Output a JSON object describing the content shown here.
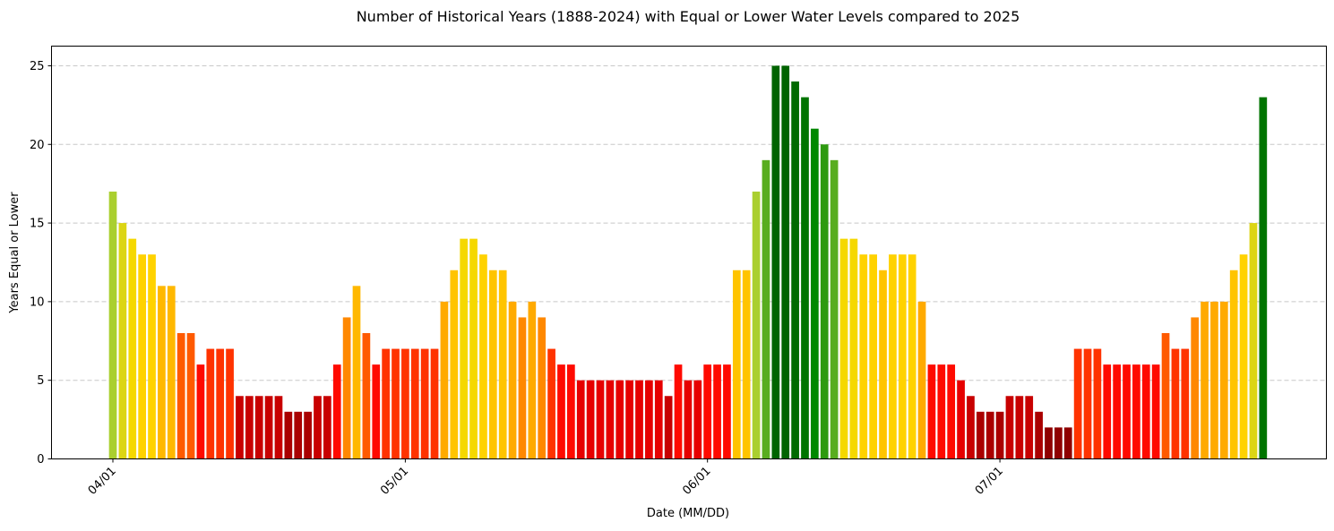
{
  "chart_data": {
    "type": "bar",
    "title": "Number of Historical Years (1888-2024) with Equal or Lower Water Levels compared to 2025",
    "xlabel": "Date (MM/DD)",
    "ylabel": "Years Equal or Lower",
    "start_date": "04/01",
    "x_tick_labels": [
      "04/01",
      "05/01",
      "06/01",
      "07/01"
    ],
    "y_ticks": [
      0,
      5,
      10,
      15,
      20,
      25
    ],
    "ylim": [
      0,
      26.25
    ],
    "grid": "y-dashed",
    "colormap": "red (low) to yellow to green (high)",
    "values": [
      17,
      15,
      14,
      13,
      13,
      11,
      11,
      8,
      8,
      6,
      7,
      7,
      7,
      4,
      4,
      4,
      4,
      4,
      3,
      3,
      3,
      4,
      4,
      6,
      9,
      11,
      8,
      6,
      7,
      7,
      7,
      7,
      7,
      7,
      10,
      12,
      14,
      14,
      13,
      12,
      12,
      10,
      9,
      10,
      9,
      7,
      6,
      6,
      5,
      5,
      5,
      5,
      5,
      5,
      5,
      5,
      5,
      4,
      6,
      5,
      5,
      6,
      6,
      6,
      12,
      12,
      17,
      19,
      25,
      25,
      24,
      23,
      21,
      20,
      19,
      14,
      14,
      13,
      13,
      12,
      13,
      13,
      13,
      10,
      6,
      6,
      6,
      5,
      4,
      3,
      3,
      3,
      4,
      4,
      4,
      3,
      2,
      2,
      2,
      7,
      7,
      7,
      6,
      6,
      6,
      6,
      6,
      6,
      8,
      7,
      7,
      9,
      10,
      10,
      10,
      12,
      13,
      15,
      23
    ]
  }
}
